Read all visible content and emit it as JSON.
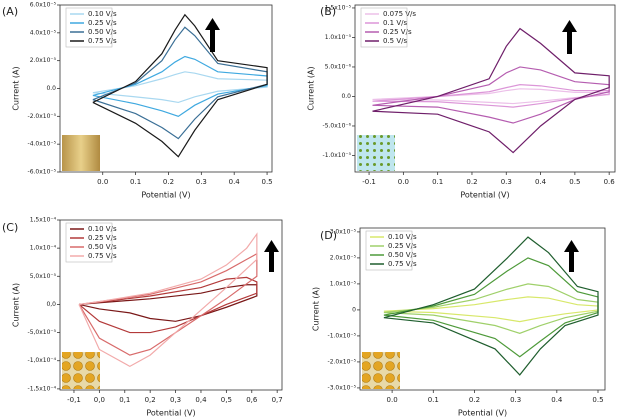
{
  "chart_data": [
    {
      "type": "line",
      "panel_label": "(A)",
      "xlabel": "Potential (V)",
      "ylabel": "Current (A)",
      "xlim": [
        -0.13,
        0.515
      ],
      "ylim": [
        -6e-05,
        6e-05
      ],
      "xticks": [
        {
          "value": 0,
          "label": "0.0"
        },
        0.1,
        0.2,
        0.3,
        0.4,
        0.5
      ],
      "yticks": [
        {
          "value": -6e-05,
          "label": "-6.0x10⁻⁵"
        },
        {
          "value": -4e-05,
          "label": "-4.0x10⁻⁵"
        },
        {
          "value": -2e-05,
          "label": "-2.0x10⁻⁵"
        },
        {
          "value": 0,
          "label": "0.0"
        },
        {
          "value": 2e-05,
          "label": "2.0x10⁻⁵"
        },
        {
          "value": 4e-05,
          "label": "4.0x10⁻⁵"
        },
        {
          "value": 6e-05,
          "label": "6.0x10⁻⁵"
        }
      ],
      "series": [
        {
          "name": "0.10 V/s",
          "color": "#a9d8f0",
          "x": [
            -0.03,
            0.1,
            0.18,
            0.22,
            0.25,
            0.28,
            0.35,
            0.5,
            0.5,
            0.35,
            0.28,
            0.23,
            0.18,
            0.1,
            -0.03
          ],
          "values": [
            -3e-06,
            2e-06,
            7e-06,
            1e-05,
            1.2e-05,
            1.1e-05,
            7e-06,
            6e-06,
            1e-06,
            -2e-06,
            -6e-06,
            -1e-05,
            -8e-06,
            -6e-06,
            -3e-06
          ]
        },
        {
          "name": "0.25 V/s",
          "color": "#3fa9e0",
          "x": [
            -0.03,
            0.1,
            0.18,
            0.22,
            0.25,
            0.28,
            0.35,
            0.5,
            0.5,
            0.35,
            0.28,
            0.23,
            0.18,
            0.1,
            -0.03
          ],
          "values": [
            -5e-06,
            3e-06,
            1.2e-05,
            1.9e-05,
            2.3e-05,
            2.1e-05,
            1.2e-05,
            9e-06,
            2e-06,
            -4e-06,
            -1.2e-05,
            -2e-05,
            -1.6e-05,
            -1.1e-05,
            -5e-06
          ]
        },
        {
          "name": "0.50 V/s",
          "color": "#3a6f96",
          "x": [
            -0.03,
            0.1,
            0.18,
            0.22,
            0.25,
            0.28,
            0.35,
            0.5,
            0.5,
            0.35,
            0.28,
            0.23,
            0.18,
            0.1,
            -0.03
          ],
          "values": [
            -8e-06,
            4e-06,
            2e-05,
            3.5e-05,
            4.4e-05,
            3.8e-05,
            1.8e-05,
            1.2e-05,
            3e-06,
            -6e-06,
            -2.2e-05,
            -3.6e-05,
            -2.8e-05,
            -1.8e-05,
            -8e-06
          ]
        },
        {
          "name": "0.75 V/s",
          "color": "#1a1a1a",
          "x": [
            -0.03,
            0.1,
            0.18,
            0.22,
            0.25,
            0.28,
            0.35,
            0.5,
            0.5,
            0.35,
            0.28,
            0.23,
            0.18,
            0.1,
            -0.03
          ],
          "values": [
            -1e-05,
            5e-06,
            2.5e-05,
            4.2e-05,
            5.3e-05,
            4.5e-05,
            2e-05,
            1.5e-05,
            3e-06,
            -8e-06,
            -3e-05,
            -4.9e-05,
            -3.8e-05,
            -2.5e-05,
            -1e-05
          ]
        }
      ]
    },
    {
      "type": "line",
      "panel_label": "(B)",
      "xlabel": "Potential (V)",
      "ylabel": "Current (A)",
      "xlim": [
        -0.141,
        0.617
      ],
      "ylim": [
        -1.28e-05,
        1.55e-05
      ],
      "xticks": [
        -0.1,
        {
          "value": 0,
          "label": "0.0"
        },
        0.1,
        0.2,
        0.3,
        0.4,
        0.5,
        0.6
      ],
      "yticks": [
        {
          "value": -1e-05,
          "label": "-1.0x10⁻⁵"
        },
        {
          "value": -5e-06,
          "label": "-5.0x10⁻⁶"
        },
        {
          "value": 0,
          "label": "0.0"
        },
        {
          "value": 5e-06,
          "label": "5.0x10⁻⁶"
        },
        {
          "value": 1e-05,
          "label": "1.0x10⁻⁵"
        },
        {
          "value": 1.5e-05,
          "label": "1.5x10⁻⁵"
        }
      ],
      "series": [
        {
          "name": "0.075 V/s",
          "color": "#ecc0e9",
          "x": [
            -0.09,
            0.1,
            0.25,
            0.3,
            0.34,
            0.4,
            0.5,
            0.6,
            0.6,
            0.5,
            0.4,
            0.32,
            0.25,
            0.1,
            -0.09
          ],
          "values": [
            -5e-07,
            0,
            5e-07,
            1e-06,
            1.3e-06,
            1.2e-06,
            7e-07,
            7e-07,
            3e-07,
            -2e-07,
            -8e-07,
            -1.2e-06,
            -1e-06,
            -6e-07,
            -5e-07
          ]
        },
        {
          "name": "0.1 V/s",
          "color": "#dc96d8",
          "x": [
            -0.09,
            0.1,
            0.25,
            0.3,
            0.34,
            0.4,
            0.5,
            0.6,
            0.6,
            0.5,
            0.4,
            0.32,
            0.25,
            0.1,
            -0.09
          ],
          "values": [
            -8e-07,
            0,
            8e-07,
            1.5e-06,
            2e-06,
            1.8e-06,
            1e-06,
            1e-06,
            4e-07,
            -3e-07,
            -1.2e-06,
            -1.8e-06,
            -1.5e-06,
            -9e-07,
            -8e-07
          ]
        },
        {
          "name": "0.25 V/s",
          "color": "#b55db0",
          "x": [
            -0.09,
            0.1,
            0.25,
            0.3,
            0.34,
            0.4,
            0.5,
            0.6,
            0.6,
            0.5,
            0.4,
            0.32,
            0.25,
            0.1,
            -0.09
          ],
          "values": [
            -1.5e-06,
            0,
            2e-06,
            4e-06,
            5e-06,
            4.5e-06,
            2.5e-06,
            2e-06,
            8e-07,
            -5e-07,
            -3e-06,
            -4.5e-06,
            -3.5e-06,
            -1.8e-06,
            -1.5e-06
          ]
        },
        {
          "name": "0.5 V/s",
          "color": "#6f1f6a",
          "x": [
            -0.09,
            0.1,
            0.25,
            0.3,
            0.34,
            0.4,
            0.5,
            0.6,
            0.6,
            0.5,
            0.4,
            0.32,
            0.25,
            0.1,
            -0.09
          ],
          "values": [
            -2.5e-06,
            0,
            3e-06,
            8.5e-06,
            1.15e-05,
            9e-06,
            4e-06,
            3.5e-06,
            1.5e-06,
            -5e-07,
            -5e-06,
            -9.5e-06,
            -6e-06,
            -3e-06,
            -2.5e-06
          ]
        }
      ]
    },
    {
      "type": "line",
      "panel_label": "(C)",
      "xlabel": "Potential (V)",
      "ylabel": "Current (A)",
      "xlim": [
        -0.155,
        0.719
      ],
      "ylim": [
        -0.000152,
        0.00015
      ],
      "xticks": [
        {
          "value": -0.1,
          "label": "-0,1"
        },
        {
          "value": 0,
          "label": "0,0"
        },
        {
          "value": 0.1,
          "label": "0,1"
        },
        {
          "value": 0.2,
          "label": "0,2"
        },
        {
          "value": 0.3,
          "label": "0,3"
        },
        {
          "value": 0.4,
          "label": "0,4"
        },
        {
          "value": 0.5,
          "label": "0,5"
        },
        {
          "value": 0.6,
          "label": "0,6"
        },
        {
          "value": 0.7,
          "label": "0,7"
        }
      ],
      "yticks": [
        {
          "value": -0.00015,
          "label": "-1,5x10⁻⁴"
        },
        {
          "value": -0.0001,
          "label": "-1,0x10⁻⁴"
        },
        {
          "value": -5e-05,
          "label": "-5,0x10⁻⁵"
        },
        {
          "value": 0,
          "label": "0,0"
        },
        {
          "value": 5e-05,
          "label": "5,0x10⁻⁵"
        },
        {
          "value": 0.0001,
          "label": "1,0x10⁻⁴"
        },
        {
          "value": 0.00015,
          "label": "1,5x10⁻⁴"
        }
      ],
      "series": [
        {
          "name": "0.10 V/s",
          "color": "#7a1818",
          "x": [
            -0.08,
            0.0,
            0.2,
            0.4,
            0.5,
            0.58,
            0.62,
            0.62,
            0.5,
            0.4,
            0.3,
            0.2,
            0.12,
            0.0,
            -0.08
          ],
          "values": [
            0,
            3e-06,
            1e-05,
            2e-05,
            3e-05,
            3.5e-05,
            3.5e-05,
            1.5e-05,
            -5e-06,
            -2e-05,
            -3e-05,
            -2.5e-05,
            -1.5e-05,
            -8e-06,
            0
          ]
        },
        {
          "name": "0.25 V/s",
          "color": "#b33a3a",
          "x": [
            -0.08,
            0.0,
            0.2,
            0.4,
            0.5,
            0.58,
            0.62,
            0.62,
            0.5,
            0.4,
            0.3,
            0.2,
            0.12,
            0.0,
            -0.08
          ],
          "values": [
            0,
            4e-06,
            1.5e-05,
            3e-05,
            4.5e-05,
            4.8e-05,
            4e-05,
            2e-05,
            0,
            -2e-05,
            -4e-05,
            -5e-05,
            -5e-05,
            -3e-05,
            0
          ]
        },
        {
          "name": "0.50 V/s",
          "color": "#d86b6b",
          "x": [
            -0.08,
            0.0,
            0.2,
            0.4,
            0.5,
            0.58,
            0.62,
            0.62,
            0.5,
            0.4,
            0.3,
            0.2,
            0.12,
            0.0,
            -0.08
          ],
          "values": [
            0,
            5e-06,
            1.8e-05,
            4e-05,
            6e-05,
            8e-05,
            9e-05,
            5e-05,
            1e-05,
            -2e-05,
            -5e-05,
            -8e-05,
            -9e-05,
            -6e-05,
            0
          ]
        },
        {
          "name": "0.75 V/s",
          "color": "#f2aaaa",
          "x": [
            -0.08,
            0.0,
            0.2,
            0.4,
            0.5,
            0.58,
            0.62,
            0.62,
            0.5,
            0.4,
            0.3,
            0.2,
            0.12,
            0.0,
            -0.08
          ],
          "values": [
            0,
            5e-06,
            2e-05,
            4.5e-05,
            7e-05,
            0.0001,
            0.000125,
            8e-05,
            3e-05,
            -1e-05,
            -5e-05,
            -9e-05,
            -0.00011,
            -8e-05,
            0
          ]
        }
      ]
    },
    {
      "type": "line",
      "panel_label": "(D)",
      "xlabel": "Potential (V)",
      "ylabel": "Current (A)",
      "xlim": [
        -0.078,
        0.517
      ],
      "ylim": [
        -3.08e-05,
        3.15e-05
      ],
      "xticks": [
        {
          "value": 0,
          "label": "0.0"
        },
        0.1,
        0.2,
        0.3,
        0.4,
        0.5
      ],
      "yticks": [
        {
          "value": -3e-05,
          "label": "-3.0x10⁻⁵"
        },
        {
          "value": -2e-05,
          "label": "-2.0x10⁻⁵"
        },
        {
          "value": -1e-05,
          "label": "-1.0x10⁻⁵"
        },
        0,
        {
          "value": 1e-05,
          "label": "1.0x10⁻⁵"
        },
        {
          "value": 2e-05,
          "label": "2.0x10⁻⁵"
        },
        {
          "value": 3e-05,
          "label": "3.0x10⁻⁵"
        }
      ],
      "series": [
        {
          "name": "0.10 V/s",
          "color": "#d8e86a",
          "x": [
            -0.02,
            0.1,
            0.2,
            0.28,
            0.33,
            0.38,
            0.45,
            0.5,
            0.5,
            0.42,
            0.36,
            0.31,
            0.25,
            0.1,
            -0.02
          ],
          "values": [
            -5e-07,
            5e-07,
            2e-06,
            4e-06,
            5e-06,
            4.5e-06,
            2e-06,
            1.5e-06,
            0,
            -1.5e-06,
            -3e-06,
            -4.5e-06,
            -3e-06,
            -1e-06,
            -5e-07
          ]
        },
        {
          "name": "0.25 V/s",
          "color": "#9fd06a",
          "x": [
            -0.02,
            0.1,
            0.2,
            0.28,
            0.33,
            0.38,
            0.45,
            0.5,
            0.5,
            0.42,
            0.36,
            0.31,
            0.25,
            0.1,
            -0.02
          ],
          "values": [
            -1e-06,
            1e-06,
            4e-06,
            8e-06,
            1e-05,
            9e-06,
            4e-06,
            3e-06,
            -5e-07,
            -3e-06,
            -6e-06,
            -9e-06,
            -6e-06,
            -2e-06,
            -1e-06
          ]
        },
        {
          "name": "0.50 V/s",
          "color": "#4e9a3a",
          "x": [
            -0.02,
            0.1,
            0.2,
            0.28,
            0.33,
            0.38,
            0.45,
            0.5,
            0.5,
            0.42,
            0.36,
            0.31,
            0.25,
            0.1,
            -0.02
          ],
          "values": [
            -2e-06,
            1.5e-06,
            6e-06,
            1.5e-05,
            2e-05,
            1.7e-05,
            7e-06,
            5e-06,
            -1e-06,
            -5e-06,
            -1.2e-05,
            -1.8e-05,
            -1.1e-05,
            -4e-06,
            -2e-06
          ]
        },
        {
          "name": "0.75 V/s",
          "color": "#1f5e2e",
          "x": [
            -0.02,
            0.1,
            0.2,
            0.28,
            0.33,
            0.38,
            0.45,
            0.5,
            0.5,
            0.42,
            0.36,
            0.31,
            0.25,
            0.1,
            -0.02
          ],
          "values": [
            -3e-06,
            2e-06,
            8e-06,
            2e-05,
            2.8e-05,
            2.2e-05,
            9e-06,
            7e-06,
            -2e-06,
            -6e-06,
            -1.5e-05,
            -2.5e-05,
            -1.5e-05,
            -5e-06,
            -3e-06
          ]
        }
      ]
    }
  ]
}
